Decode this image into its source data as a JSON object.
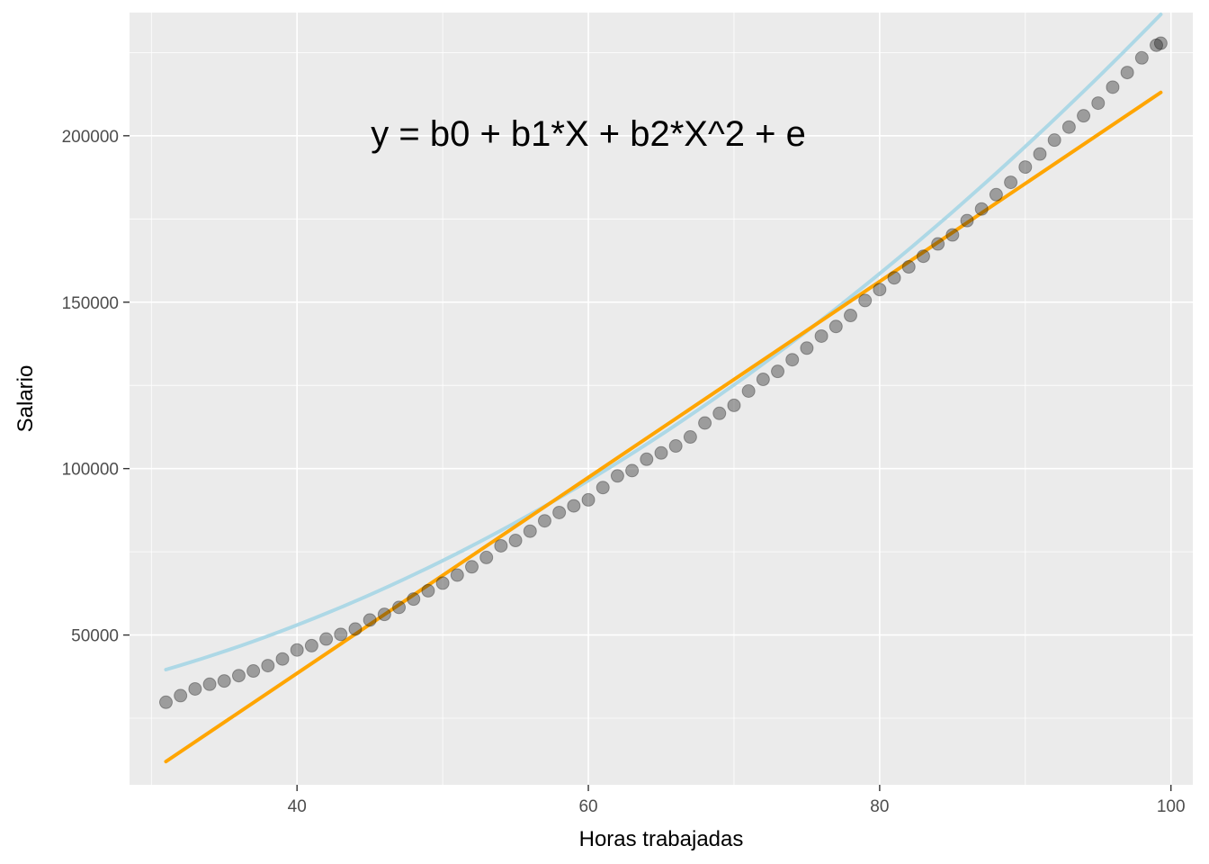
{
  "chart_data": {
    "type": "scatter",
    "title": "",
    "xlabel": "Horas trabajadas",
    "ylabel": "Salario",
    "xlim": [
      28.5,
      101.5
    ],
    "ylim": [
      5000,
      237000
    ],
    "x_ticks": [
      40,
      60,
      80,
      100
    ],
    "x_minor_ticks": [
      30,
      50,
      70,
      90
    ],
    "y_ticks": [
      50000,
      100000,
      150000,
      200000
    ],
    "y_minor_ticks": [
      25000,
      75000,
      125000,
      175000,
      225000
    ],
    "grid": true,
    "legend": "none",
    "annotation": "y = b0 + b1*X + b2*X^2 + e",
    "annotation_position": [
      60,
      197000
    ],
    "colors": {
      "points": "#333333",
      "linear_fit": "#FFA500",
      "quadratic_fit": "#ADD8E6",
      "panel": "#EBEBEB"
    },
    "linear_fit": {
      "x": [
        31,
        99.3
      ],
      "y": [
        12000,
        213000
      ]
    },
    "quadratic_fit": {
      "x_range": [
        31,
        99.3
      ],
      "coefficients": {
        "b0": 22600,
        "b1": -180,
        "b2": 23.5
      }
    },
    "points": {
      "x": [
        31,
        32,
        33,
        34,
        35,
        36,
        37,
        38,
        39,
        40,
        41,
        42,
        43,
        44,
        45,
        46,
        47,
        48,
        49,
        50,
        51,
        52,
        53,
        54,
        55,
        56,
        57,
        58,
        59,
        60,
        61,
        62,
        63,
        64,
        65,
        66,
        67,
        68,
        69,
        70,
        71,
        72,
        73,
        74,
        75,
        76,
        77,
        78,
        79,
        80,
        81,
        82,
        83,
        84,
        85,
        86,
        87,
        88,
        89,
        90,
        91,
        92,
        93,
        94,
        95,
        96,
        97,
        98,
        99,
        99.3
      ],
      "y": [
        29800,
        31800,
        33800,
        35200,
        36200,
        37800,
        39200,
        40800,
        42800,
        45500,
        46800,
        48800,
        50200,
        51800,
        54500,
        56200,
        58300,
        60800,
        63300,
        65600,
        68000,
        70500,
        73300,
        76800,
        78400,
        81200,
        84300,
        86800,
        88800,
        90600,
        94300,
        97800,
        99400,
        102800,
        104700,
        106800,
        109500,
        113700,
        116600,
        119000,
        123300,
        126800,
        129200,
        132700,
        136200,
        139800,
        142700,
        146000,
        150500,
        153800,
        157300,
        160600,
        163800,
        167500,
        170200,
        174500,
        178000,
        182300,
        186000,
        190600,
        194500,
        198700,
        202600,
        206000,
        209800,
        214600,
        219000,
        223400,
        227200,
        227800
      ]
    }
  }
}
